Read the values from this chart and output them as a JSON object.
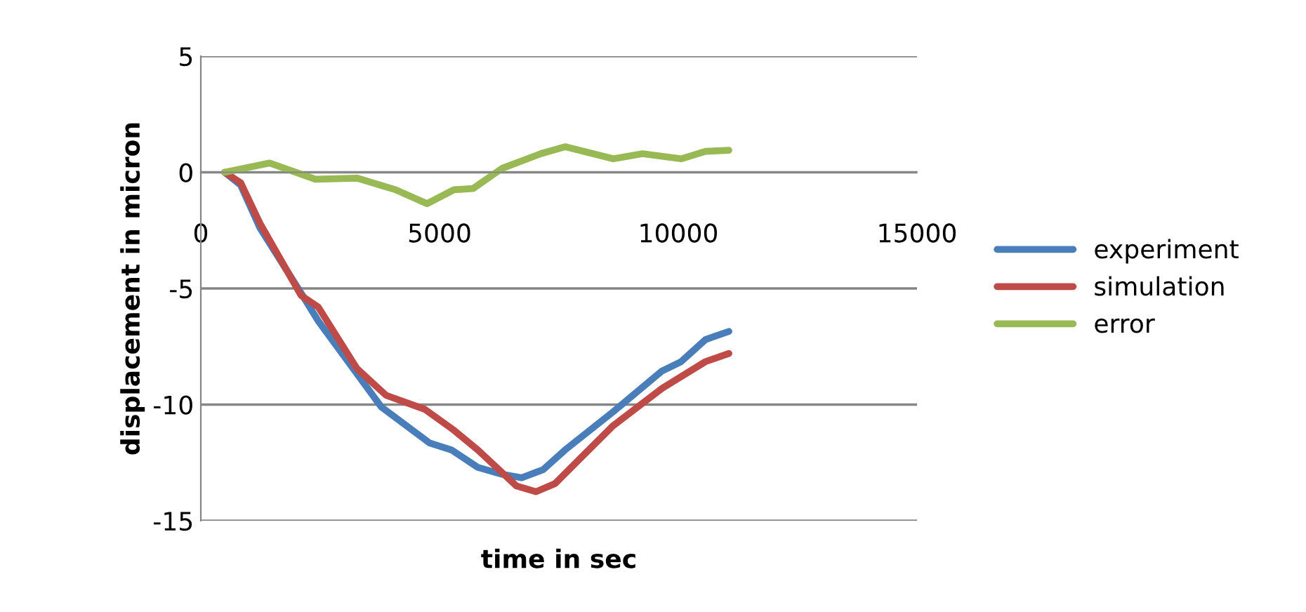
{
  "chart_data": {
    "type": "line",
    "xlabel": "time in sec",
    "ylabel": "displacement in micron",
    "xlim": [
      0,
      15000
    ],
    "xticks": [
      0,
      5000,
      10000,
      15000
    ],
    "ylim": [
      -15,
      5
    ],
    "yticks": [
      -15,
      -10,
      -5,
      0,
      5
    ],
    "grid": "y",
    "legend": "right",
    "marker": "none",
    "line_style": "solid",
    "series": [
      {
        "name": "experiment",
        "color": "#4a7ebb",
        "x": [
          500,
          835,
          1240,
          2100,
          2460,
          3780,
          4790,
          5250,
          5800,
          6310,
          6720,
          7170,
          7630,
          8640,
          9660,
          10060,
          10570,
          11060
        ],
        "values": [
          0,
          -0.55,
          -2.4,
          -5.2,
          -6.4,
          -10.1,
          -11.65,
          -11.95,
          -12.7,
          -13.0,
          -13.15,
          -12.8,
          -11.95,
          -10.3,
          -8.55,
          -8.15,
          -7.2,
          -6.85
        ]
      },
      {
        "name": "simulation",
        "color": "#be4b48",
        "x": [
          500,
          835,
          1240,
          2100,
          2460,
          3270,
          3880,
          4690,
          5300,
          5800,
          6610,
          7020,
          7420,
          7930,
          8640,
          9660,
          10570,
          11060
        ],
        "values": [
          0,
          -0.45,
          -2.2,
          -5.3,
          -5.8,
          -8.45,
          -9.6,
          -10.2,
          -11.1,
          -11.95,
          -13.5,
          -13.75,
          -13.4,
          -12.35,
          -10.9,
          -9.3,
          -8.15,
          -7.8
        ]
      },
      {
        "name": "error",
        "color": "#98b954",
        "x": [
          500,
          1440,
          2400,
          3270,
          4080,
          4740,
          5300,
          5700,
          6310,
          7120,
          7630,
          8640,
          9250,
          10060,
          10570,
          11060
        ],
        "values": [
          0,
          0.4,
          -0.3,
          -0.25,
          -0.75,
          -1.35,
          -0.75,
          -0.7,
          0.17,
          0.8,
          1.1,
          0.58,
          0.8,
          0.58,
          0.9,
          0.95
        ]
      }
    ]
  }
}
